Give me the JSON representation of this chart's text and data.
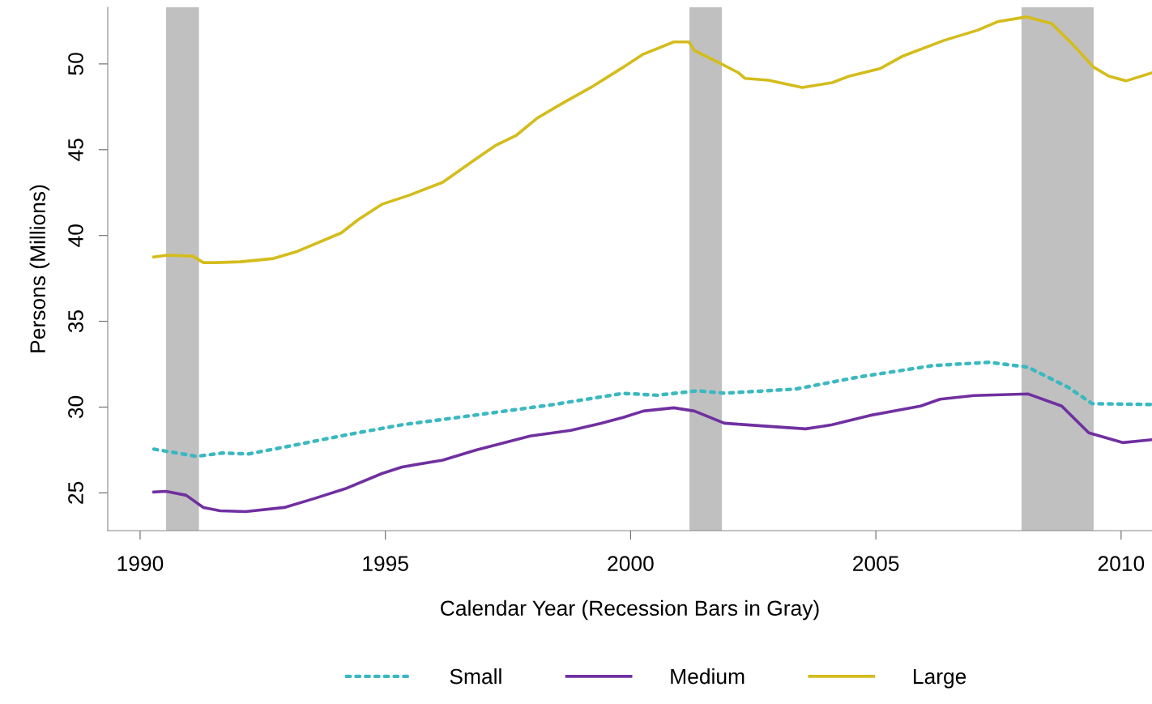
{
  "chart_data": {
    "type": "line",
    "xlabel": "Calendar Year (Recession Bars in Gray)",
    "ylabel": "Persons (Millions)",
    "xlim": [
      1989.34,
      2010.63
    ],
    "ylim": [
      22.8,
      53.3
    ],
    "xticks": [
      1990,
      1995,
      2000,
      2005,
      2010
    ],
    "yticks": [
      25,
      30,
      35,
      40,
      45,
      50
    ],
    "grid": false,
    "legend": "bottom",
    "bands": [
      {
        "axis": "x",
        "from": 1990.53,
        "to": 1991.2,
        "color": "#c0c0c0"
      },
      {
        "axis": "x",
        "from": 2001.2,
        "to": 2001.86,
        "color": "#c0c0c0"
      },
      {
        "axis": "x",
        "from": 2007.97,
        "to": 2009.44,
        "color": "#c0c0c0"
      }
    ],
    "series": [
      {
        "name": "Small",
        "color": "#3bb8c0",
        "line_style": "dotted",
        "x": [
          1990.28,
          1991.15,
          1991.67,
          1992.21,
          1993.07,
          1994.24,
          1995.34,
          1996.72,
          1998.43,
          1999.85,
          2000.54,
          2001.36,
          2001.91,
          2003.36,
          2004.66,
          2006.17,
          2007.31,
          2008.1,
          2008.93,
          2009.41,
          2010.63
        ],
        "values": [
          27.55,
          27.13,
          27.32,
          27.27,
          27.74,
          28.4,
          28.97,
          29.49,
          30.15,
          30.8,
          30.69,
          30.95,
          30.81,
          31.05,
          31.76,
          32.42,
          32.61,
          32.33,
          31.14,
          30.2,
          30.15
        ]
      },
      {
        "name": "Medium",
        "color": "#7030a0",
        "line_style": "solid",
        "x": [
          1990.28,
          1990.53,
          1990.94,
          1991.29,
          1991.63,
          1992.15,
          1992.94,
          1993.55,
          1994.18,
          1994.93,
          1995.34,
          1996.17,
          1996.85,
          1997.95,
          1998.78,
          1999.4,
          1999.85,
          2000.26,
          2000.88,
          2001.3,
          2001.91,
          2002.6,
          2003.57,
          2004.11,
          2004.87,
          2005.91,
          2006.31,
          2007.0,
          2008.1,
          2008.79,
          2009.34,
          2010.03,
          2010.63
        ],
        "values": [
          25.05,
          25.09,
          24.86,
          24.15,
          23.96,
          23.91,
          24.15,
          24.67,
          25.24,
          26.13,
          26.51,
          26.91,
          27.5,
          28.31,
          28.64,
          29.06,
          29.4,
          29.77,
          29.96,
          29.77,
          29.06,
          28.92,
          28.73,
          28.97,
          29.51,
          30.06,
          30.46,
          30.67,
          30.77,
          30.06,
          28.5,
          27.93,
          28.1
        ]
      },
      {
        "name": "Large",
        "color": "#d4bc1c",
        "line_style": "solid",
        "x": [
          1990.28,
          1990.56,
          1991.07,
          1991.29,
          1991.56,
          1992.05,
          1992.72,
          1993.21,
          1994.1,
          1994.45,
          1994.93,
          1995.48,
          1996.17,
          1996.85,
          1997.26,
          1997.67,
          1998.09,
          1998.57,
          1999.19,
          1999.85,
          2000.26,
          2000.88,
          2001.19,
          2001.3,
          2001.85,
          2002.19,
          2002.33,
          2002.81,
          2003.5,
          2004.11,
          2004.46,
          2005.08,
          2005.56,
          2006.39,
          2007.07,
          2007.48,
          2008.07,
          2008.58,
          2009.0,
          2009.44,
          2009.75,
          2010.1,
          2010.63
        ],
        "values": [
          38.75,
          38.85,
          38.8,
          38.42,
          38.42,
          38.47,
          38.66,
          39.08,
          40.15,
          40.93,
          41.82,
          42.34,
          43.1,
          44.47,
          45.27,
          45.84,
          46.83,
          47.64,
          48.63,
          49.81,
          50.57,
          51.28,
          51.28,
          50.78,
          50.0,
          49.5,
          49.16,
          49.05,
          48.63,
          48.91,
          49.29,
          49.72,
          50.47,
          51.37,
          51.96,
          52.46,
          52.74,
          52.36,
          51.18,
          49.81,
          49.29,
          49.01,
          49.48
        ]
      }
    ]
  }
}
